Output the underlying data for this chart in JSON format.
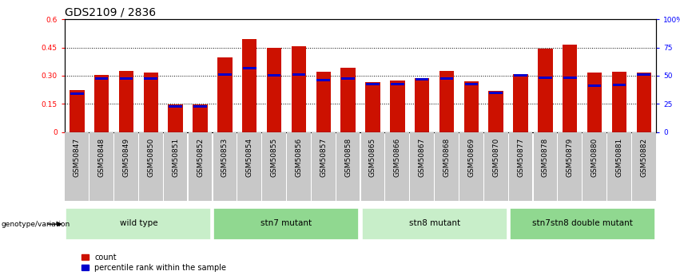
{
  "title": "GDS2109 / 2836",
  "samples": [
    "GSM50847",
    "GSM50848",
    "GSM50849",
    "GSM50850",
    "GSM50851",
    "GSM50852",
    "GSM50853",
    "GSM50854",
    "GSM50855",
    "GSM50856",
    "GSM50857",
    "GSM50858",
    "GSM50865",
    "GSM50866",
    "GSM50867",
    "GSM50868",
    "GSM50869",
    "GSM50870",
    "GSM50877",
    "GSM50878",
    "GSM50879",
    "GSM50880",
    "GSM50881",
    "GSM50882"
  ],
  "counts": [
    0.225,
    0.305,
    0.325,
    0.315,
    0.148,
    0.148,
    0.395,
    0.495,
    0.45,
    0.455,
    0.32,
    0.34,
    0.265,
    0.275,
    0.285,
    0.325,
    0.27,
    0.22,
    0.31,
    0.445,
    0.465,
    0.315,
    0.32,
    0.315
  ],
  "percentile_ranks": [
    0.205,
    0.285,
    0.285,
    0.285,
    0.138,
    0.138,
    0.305,
    0.34,
    0.3,
    0.305,
    0.275,
    0.285,
    0.255,
    0.255,
    0.28,
    0.285,
    0.255,
    0.21,
    0.3,
    0.29,
    0.29,
    0.245,
    0.25,
    0.305
  ],
  "groups": [
    {
      "label": "wild type",
      "start": 0,
      "end": 6,
      "color": "#c8eec9"
    },
    {
      "label": "stn7 mutant",
      "start": 6,
      "end": 12,
      "color": "#90d890"
    },
    {
      "label": "stn8 mutant",
      "start": 12,
      "end": 18,
      "color": "#c8eec9"
    },
    {
      "label": "stn7stn8 double mutant",
      "start": 18,
      "end": 24,
      "color": "#90d890"
    }
  ],
  "bar_color": "#cc1100",
  "marker_color": "#0000cc",
  "ylim_left": [
    0,
    0.6
  ],
  "yticks_left": [
    0,
    0.15,
    0.3,
    0.45,
    0.6
  ],
  "ytick_labels_left": [
    "0",
    "0.15",
    "0.30",
    "0.45",
    "0.6"
  ],
  "ytick_labels_right": [
    "0",
    "25",
    "50",
    "75",
    "100%"
  ],
  "grid_values": [
    0.15,
    0.3,
    0.45
  ],
  "bar_width": 0.6,
  "title_fontsize": 10,
  "tick_fontsize": 6.5,
  "group_label_fontsize": 7.5,
  "legend_fontsize": 7,
  "genotype_label": "genotype/variation",
  "xlabel_bg_color": "#c8c8c8",
  "xlabel_bg_color2": "#b8b8b8"
}
